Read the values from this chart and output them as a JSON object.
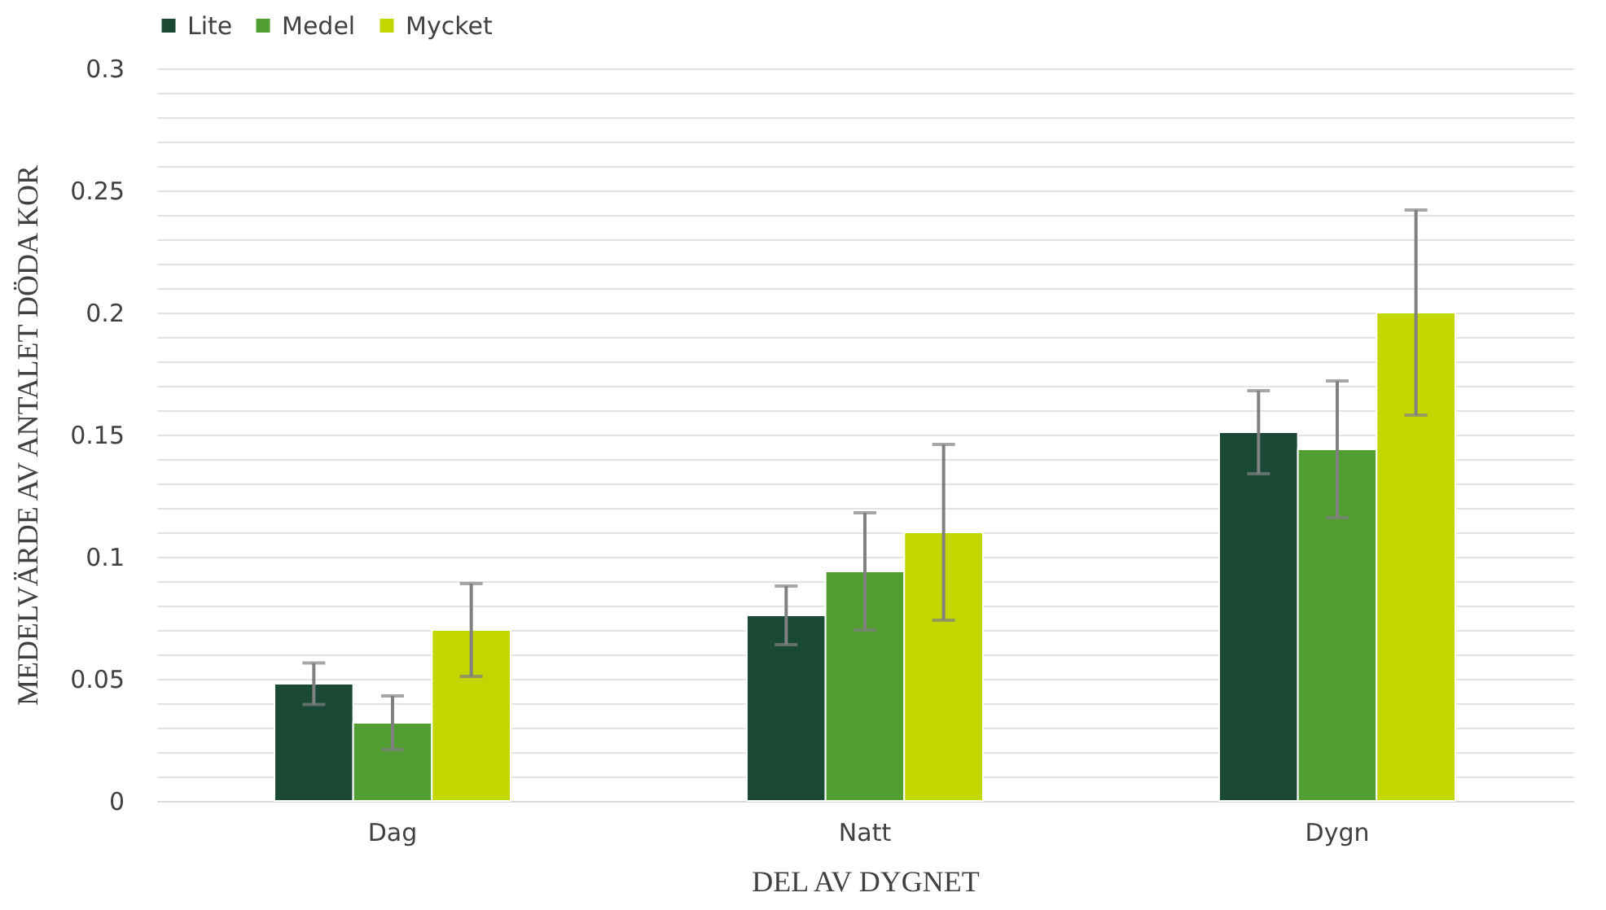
{
  "chart_data": {
    "type": "bar",
    "xlabel": "DEL AV DYGNET",
    "ylabel": "MEDELVÄRDE AV ANTALET DÖDA KOR",
    "categories": [
      "Dag",
      "Natt",
      "Dygn"
    ],
    "series": [
      {
        "name": "Lite",
        "color": "#1a4a36",
        "values": [
          0.048,
          0.076,
          0.151
        ],
        "errors": [
          0.0085,
          0.012,
          0.017
        ]
      },
      {
        "name": "Medel",
        "color": "#529e32",
        "values": [
          0.032,
          0.094,
          0.144
        ],
        "errors": [
          0.011,
          0.024,
          0.028
        ]
      },
      {
        "name": "Mycket",
        "color": "#c4d600",
        "values": [
          0.07,
          0.11,
          0.2
        ],
        "errors": [
          0.019,
          0.036,
          0.042
        ]
      }
    ],
    "ylim": [
      0,
      0.3
    ],
    "yticks": [
      0,
      {
        "value": 0.01,
        "label": null
      },
      {
        "value": 0.02,
        "label": null
      },
      {
        "value": 0.03,
        "label": null
      },
      {
        "value": 0.04,
        "label": null
      },
      0.05,
      {
        "value": 0.06,
        "label": null
      },
      {
        "value": 0.07,
        "label": null
      },
      {
        "value": 0.08,
        "label": null
      },
      {
        "value": 0.09,
        "label": null
      },
      0.1,
      {
        "value": 0.11,
        "label": null
      },
      {
        "value": 0.12,
        "label": null
      },
      {
        "value": 0.13,
        "label": null
      },
      {
        "value": 0.14,
        "label": null
      },
      0.15,
      {
        "value": 0.16,
        "label": null
      },
      {
        "value": 0.17,
        "label": null
      },
      {
        "value": 0.18,
        "label": null
      },
      {
        "value": 0.19,
        "label": null
      },
      0.2,
      {
        "value": 0.21,
        "label": null
      },
      {
        "value": 0.22,
        "label": null
      },
      {
        "value": 0.23,
        "label": null
      },
      {
        "value": 0.24,
        "label": null
      },
      0.25,
      {
        "value": 0.26,
        "label": null
      },
      {
        "value": 0.27,
        "label": null
      },
      {
        "value": 0.28,
        "label": null
      },
      {
        "value": 0.29,
        "label": null
      },
      0.3
    ],
    "grid": "y",
    "legend": "top"
  }
}
